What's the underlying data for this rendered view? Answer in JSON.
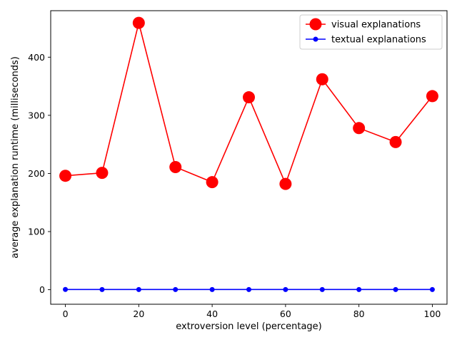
{
  "chart_data": {
    "type": "line",
    "title": "",
    "xlabel": "extroversion level (percentage)",
    "ylabel": "average explanation runtime (milliseconds)",
    "x": [
      0,
      10,
      20,
      30,
      40,
      50,
      60,
      70,
      80,
      90,
      100
    ],
    "xlim": [
      -4,
      104
    ],
    "ylim": [
      -25,
      480
    ],
    "xticks": [
      0,
      20,
      40,
      60,
      80,
      100
    ],
    "yticks": [
      0,
      100,
      200,
      300,
      400
    ],
    "grid": false,
    "legend_position": "top-right",
    "series": [
      {
        "name": "visual explanations",
        "color": "#ff0000",
        "marker": "large-circle",
        "values": [
          196,
          201,
          459,
          211,
          185,
          331,
          182,
          362,
          278,
          254,
          333
        ]
      },
      {
        "name": "textual explanations",
        "color": "#0000ff",
        "marker": "small-circle",
        "values": [
          0.4,
          0.3,
          0.3,
          0.3,
          0.3,
          0.3,
          0.3,
          0.3,
          0.3,
          0.3,
          0.3
        ]
      }
    ]
  }
}
